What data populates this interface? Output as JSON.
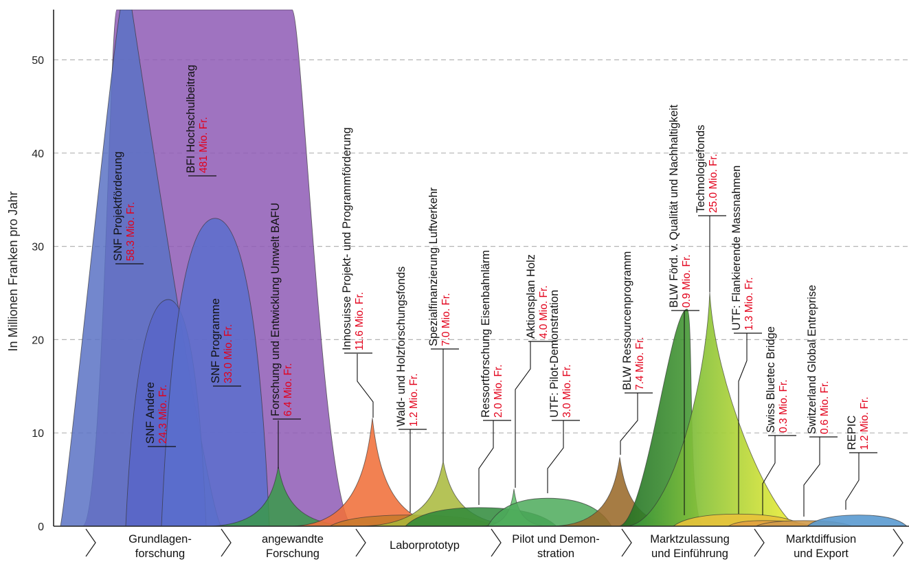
{
  "chart_data": {
    "type": "area",
    "title": "",
    "ylabel": "In Millionen Franken pro Jahr",
    "xlabel": "",
    "ylim": [
      0,
      55
    ],
    "yticks": [
      0,
      10,
      20,
      30,
      40,
      50
    ],
    "grid": true,
    "stages": [
      {
        "line1": "Grundlagen-",
        "line2": "forschung"
      },
      {
        "line1": "angewandte",
        "line2": "Forschung"
      },
      {
        "line1": "Laborprototyp",
        "line2": ""
      },
      {
        "line1": "Pilot und Demon-",
        "line2": "stration"
      },
      {
        "line1": "Marktzulassung",
        "line2": "und Einführung"
      },
      {
        "line1": "Marktdiffusion",
        "line2": "und Export"
      }
    ],
    "series": [
      {
        "name": "SNF Projektförderung",
        "amount": "58.3 Mio. Fr.",
        "value": 58.3,
        "color": "#5b72c4"
      },
      {
        "name": "SNF Andere",
        "amount": "24.3 Mio. Fr.",
        "value": 24.3,
        "color": "#5865c8"
      },
      {
        "name": "BFI Hochschulbeitrag",
        "amount": "481 Mio. Fr.",
        "value": 481,
        "color": "#8e5ab5"
      },
      {
        "name": "SNF Programme",
        "amount": "33.0 Mio. Fr.",
        "value": 33.0,
        "color": "#5a6fcc"
      },
      {
        "name": "Forschung und Entwicklung Umwelt BAFU",
        "amount": "6.4 Mio. Fr.",
        "value": 6.4,
        "color": "#3a9a4a"
      },
      {
        "name": "Innosuisse Projekt- und Programmförderung",
        "amount": "11.6 Mio. Fr.",
        "value": 11.6,
        "color": "#f0703a"
      },
      {
        "name": "Wald- und Holzforschungsfonds",
        "amount": "1.2 Mio. Fr.",
        "value": 1.2,
        "color": "#c87a2a"
      },
      {
        "name": "Spezialfinanzierung Luftverkehr",
        "amount": "7.0 Mio. Fr.",
        "value": 7.0,
        "color": "#a8b83a"
      },
      {
        "name": "Ressortforschung Eisenbahnlärm",
        "amount": "2.0 Mio. Fr.",
        "value": 2.0,
        "color": "#2e8a3a"
      },
      {
        "name": "Aktionsplan Holz",
        "amount": "4.0 Mio. Fr.",
        "value": 4.0,
        "color": "#5fbf6a"
      },
      {
        "name": "UTF: Pilot-Demonstration",
        "amount": "3.0 Mio. Fr.",
        "value": 3.0,
        "color": "#4caa5a"
      },
      {
        "name": "BLW Ressourcenprogramm",
        "amount": "7.4 Mio. Fr.",
        "value": 7.4,
        "color": "#9a6a2a"
      },
      {
        "name": "BLW Förd. v. Qualität und Nachhaltigkeit",
        "amount": "0.9 Mio. Fr.",
        "value": 0.9,
        "color": "#2e7a2e"
      },
      {
        "name": "Technologiefonds",
        "amount": "25.0 Mio. Fr.",
        "value": 25.0,
        "color": "#8cc43a"
      },
      {
        "name": "UTF: Flankierende Massnahmen",
        "amount": "1.3 Mio. Fr.",
        "value": 1.3,
        "color": "#e8c23a"
      },
      {
        "name": "Swiss Bluetec Bridge",
        "amount": "0.3 Mio. Fr.",
        "value": 0.3,
        "color": "#e0a040"
      },
      {
        "name": "Switzerland Global Entreprise",
        "amount": "0.6 Mio. Fr.",
        "value": 0.6,
        "color": "#d09a4a"
      },
      {
        "name": "REPIC",
        "amount": "1.2 Mio. Fr.",
        "value": 1.2,
        "color": "#5a9ad0"
      }
    ]
  }
}
